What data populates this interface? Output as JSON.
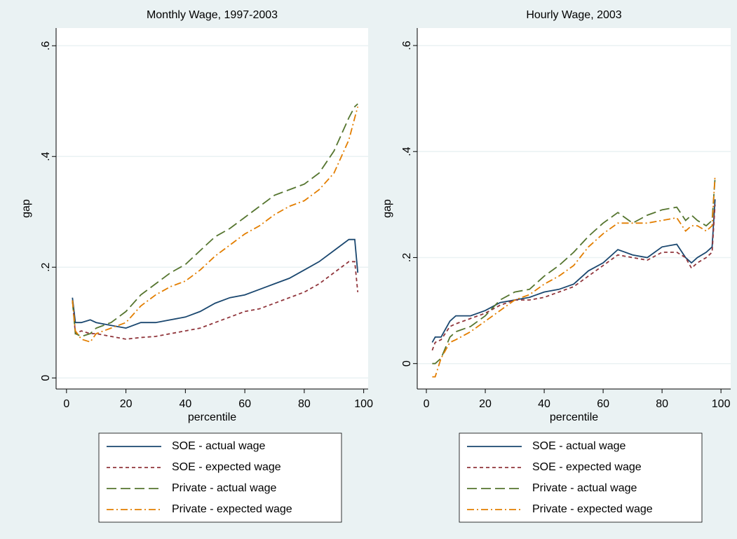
{
  "chart_data": [
    {
      "type": "line",
      "title": "Monthly Wage, 1997-2003",
      "x_label": "percentile",
      "y_label": "gap",
      "x": [
        2,
        3,
        5,
        8,
        10,
        15,
        20,
        25,
        30,
        35,
        40,
        45,
        50,
        55,
        60,
        65,
        70,
        75,
        80,
        85,
        90,
        95,
        97,
        98
      ],
      "series": [
        {
          "name": "SOE - actual wage",
          "color": "#1a476f",
          "dash": "solid",
          "values": [
            0.145,
            0.1,
            0.1,
            0.105,
            0.1,
            0.095,
            0.09,
            0.1,
            0.1,
            0.105,
            0.11,
            0.12,
            0.135,
            0.145,
            0.15,
            0.16,
            0.17,
            0.18,
            0.195,
            0.21,
            0.23,
            0.25,
            0.25,
            0.19
          ]
        },
        {
          "name": "SOE - expected wage",
          "color": "#90353b",
          "dash": "dash",
          "values": [
            0.14,
            0.08,
            0.085,
            0.08,
            0.08,
            0.075,
            0.07,
            0.073,
            0.075,
            0.08,
            0.085,
            0.09,
            0.1,
            0.11,
            0.12,
            0.125,
            0.135,
            0.145,
            0.155,
            0.17,
            0.19,
            0.21,
            0.21,
            0.155
          ]
        },
        {
          "name": "Private - actual wage",
          "color": "#55752f",
          "dash": "longdash",
          "values": [
            0.14,
            0.08,
            0.075,
            0.08,
            0.09,
            0.1,
            0.12,
            0.15,
            0.17,
            0.19,
            0.205,
            0.23,
            0.255,
            0.27,
            0.29,
            0.31,
            0.33,
            0.34,
            0.35,
            0.37,
            0.41,
            0.47,
            0.49,
            0.495
          ]
        },
        {
          "name": "Private - expected wage",
          "color": "#e37e00",
          "dash": "dashdot",
          "values": [
            0.14,
            0.085,
            0.07,
            0.065,
            0.08,
            0.09,
            0.1,
            0.13,
            0.15,
            0.165,
            0.175,
            0.195,
            0.22,
            0.24,
            0.26,
            0.275,
            0.295,
            0.31,
            0.32,
            0.34,
            0.37,
            0.43,
            0.47,
            0.49
          ]
        }
      ],
      "xlim": [
        -3.5,
        101.5
      ],
      "ylim": [
        -0.02,
        0.632
      ],
      "xticks": [
        0,
        20,
        40,
        60,
        80,
        100
      ],
      "yticks": [
        0,
        {
          "value": 0.2,
          "label": ".2"
        },
        {
          "value": 0.4,
          "label": ".4"
        },
        {
          "value": 0.6,
          "label": ".6"
        }
      ],
      "grid": true
    },
    {
      "type": "line",
      "title": "Hourly Wage, 2003",
      "x_label": "percentile",
      "y_label": "gap",
      "x": [
        2,
        3,
        5,
        8,
        10,
        15,
        20,
        25,
        30,
        35,
        40,
        45,
        50,
        55,
        60,
        65,
        70,
        75,
        80,
        85,
        88,
        90,
        92,
        95,
        97,
        98
      ],
      "series": [
        {
          "name": "SOE - actual wage",
          "color": "#1a476f",
          "dash": "solid",
          "values": [
            0.04,
            0.05,
            0.05,
            0.08,
            0.09,
            0.09,
            0.1,
            0.115,
            0.12,
            0.125,
            0.135,
            0.14,
            0.15,
            0.175,
            0.19,
            0.215,
            0.205,
            0.2,
            0.22,
            0.225,
            0.2,
            0.19,
            0.2,
            0.21,
            0.22,
            0.31
          ]
        },
        {
          "name": "SOE - expected wage",
          "color": "#90353b",
          "dash": "dash",
          "values": [
            0.025,
            0.04,
            0.045,
            0.07,
            0.075,
            0.085,
            0.095,
            0.11,
            0.12,
            0.12,
            0.125,
            0.135,
            0.145,
            0.165,
            0.185,
            0.205,
            0.2,
            0.195,
            0.21,
            0.21,
            0.2,
            0.18,
            0.19,
            0.2,
            0.21,
            0.3
          ]
        },
        {
          "name": "Private - actual wage",
          "color": "#55752f",
          "dash": "longdash",
          "values": [
            0,
            0,
            0.01,
            0.05,
            0.06,
            0.07,
            0.09,
            0.12,
            0.135,
            0.14,
            0.165,
            0.185,
            0.21,
            0.24,
            0.265,
            0.285,
            0.265,
            0.28,
            0.29,
            0.295,
            0.27,
            0.28,
            0.27,
            0.26,
            0.27,
            0.35
          ]
        },
        {
          "name": "Private - expected wage",
          "color": "#e37e00",
          "dash": "dashdot",
          "values": [
            -0.025,
            -0.025,
            0.01,
            0.04,
            0.045,
            0.06,
            0.08,
            0.1,
            0.12,
            0.13,
            0.15,
            0.165,
            0.185,
            0.22,
            0.245,
            0.265,
            0.265,
            0.265,
            0.27,
            0.275,
            0.25,
            0.26,
            0.26,
            0.25,
            0.26,
            0.355
          ]
        }
      ],
      "xlim": [
        -3.1,
        103.3
      ],
      "ylim": [
        -0.048,
        0.633
      ],
      "xticks": [
        0,
        20,
        40,
        60,
        80,
        100
      ],
      "yticks": [
        0,
        {
          "value": 0.2,
          "label": ".2"
        },
        {
          "value": 0.4,
          "label": ".4"
        },
        {
          "value": 0.6,
          "label": ".6"
        }
      ],
      "grid": true
    }
  ]
}
